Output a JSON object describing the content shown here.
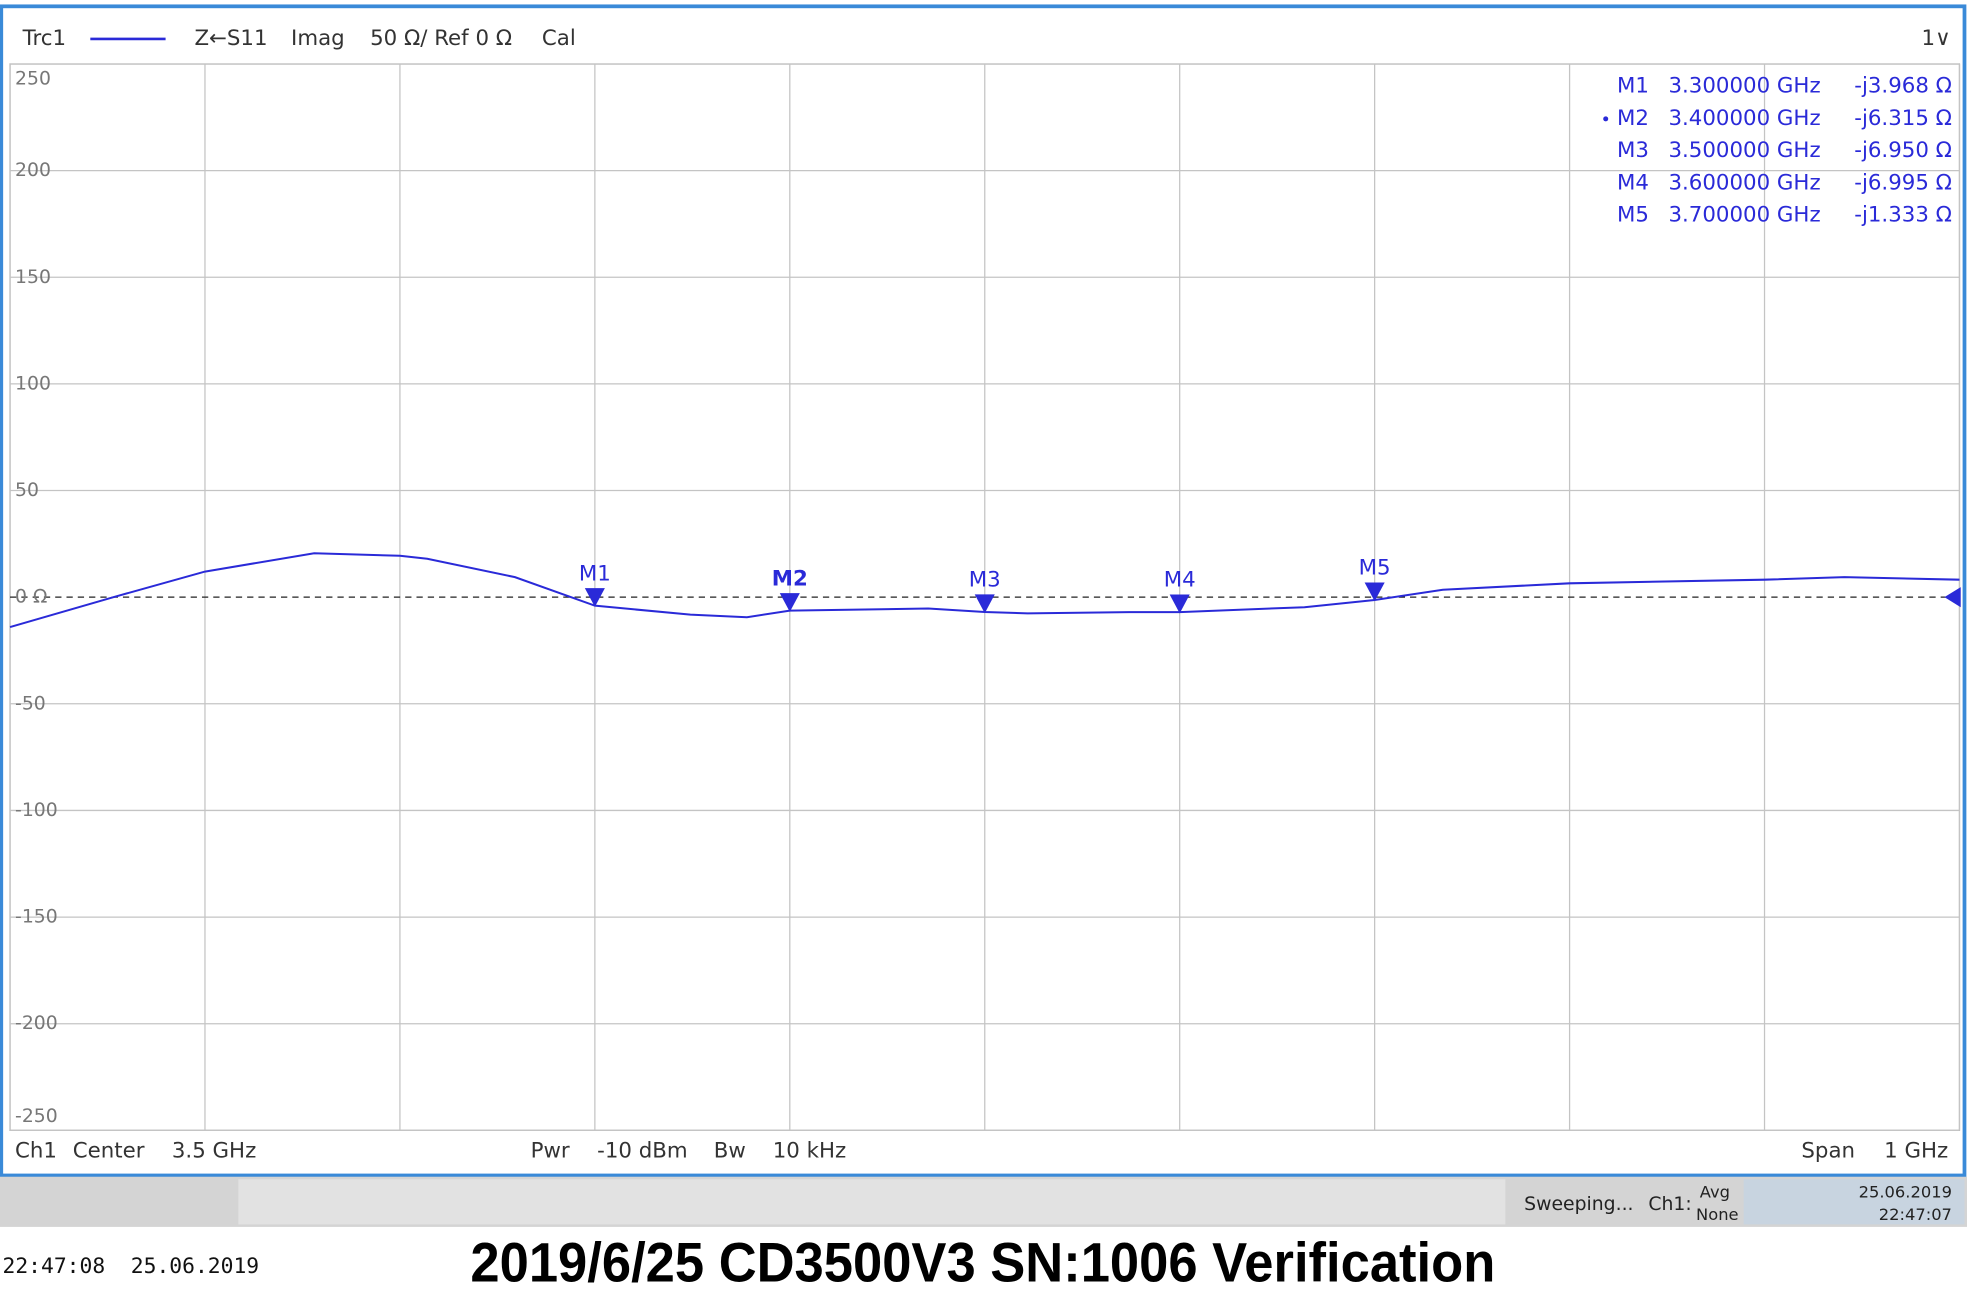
{
  "header": {
    "trace": "Trc1",
    "parameter": "Z←S11",
    "format": "Imag",
    "scale": "50 Ω/ Ref 0 Ω",
    "cal": "Cal",
    "window": "1∨"
  },
  "chart_data": {
    "type": "line",
    "x": [
      3.0,
      3.053,
      3.1,
      3.156,
      3.2,
      3.214,
      3.259,
      3.3,
      3.349,
      3.378,
      3.4,
      3.471,
      3.5,
      3.522,
      3.574,
      3.6,
      3.664,
      3.7,
      3.735,
      3.8,
      3.9,
      3.941,
      4.0
    ],
    "series": [
      {
        "name": "Trc1",
        "color": "#2a2ad8",
        "values": [
          -14,
          0,
          12,
          20.6,
          19.4,
          18,
          9.4,
          -3.968,
          -8.2,
          -9.4,
          -6.315,
          -5.3,
          -6.95,
          -7.6,
          -7,
          -6.995,
          -4.7,
          -1.333,
          3.5,
          6.5,
          8.2,
          9.4,
          8.2
        ]
      }
    ],
    "xlim": [
      3.0,
      4.0
    ],
    "xticks": [
      3.0,
      3.1,
      3.2,
      3.3,
      3.4,
      3.5,
      3.6,
      3.7,
      3.8,
      3.9,
      4.0
    ],
    "ylim": [
      -250,
      250
    ],
    "yticks": [
      250,
      200,
      150,
      100,
      50,
      {
        "value": 0,
        "label": "0 Ω"
      },
      -50,
      -100,
      -150,
      -200,
      -250
    ],
    "grid": true,
    "markers": [
      {
        "name": "M1",
        "frequency": "3.300000 GHz",
        "reading": "-j3.968 Ω",
        "x": 3.3,
        "y": -3.968
      },
      {
        "name": "M2",
        "frequency": "3.400000 GHz",
        "reading": "-j6.315 Ω",
        "x": 3.4,
        "y": -6.315
      },
      {
        "name": "M3",
        "frequency": "3.500000 GHz",
        "reading": "-j6.950 Ω",
        "x": 3.5,
        "y": -6.95
      },
      {
        "name": "M4",
        "frequency": "3.600000 GHz",
        "reading": "-j6.995 Ω",
        "x": 3.6,
        "y": -6.995
      },
      {
        "name": "M5",
        "frequency": "3.700000 GHz",
        "reading": "-j1.333 Ω",
        "x": 3.7,
        "y": -1.333
      }
    ]
  },
  "footer": {
    "channel": "Ch1",
    "center_label": "Center",
    "center": "3.5 GHz",
    "pwr_label": "Pwr",
    "pwr": "-10 dBm",
    "bw_label": "Bw",
    "bw": "10 kHz",
    "span_label": "Span",
    "span": "1 GHz"
  },
  "status": {
    "state": "Sweeping...",
    "channel": "Ch1:",
    "avg": "Avg",
    "avg_value": "None",
    "date": "25.06.2019",
    "time": "22:47:07"
  },
  "timestamp": "22:47:08  25.06.2019",
  "caption": "2019/6/25 CD3500V3 SN:1006 Verification"
}
